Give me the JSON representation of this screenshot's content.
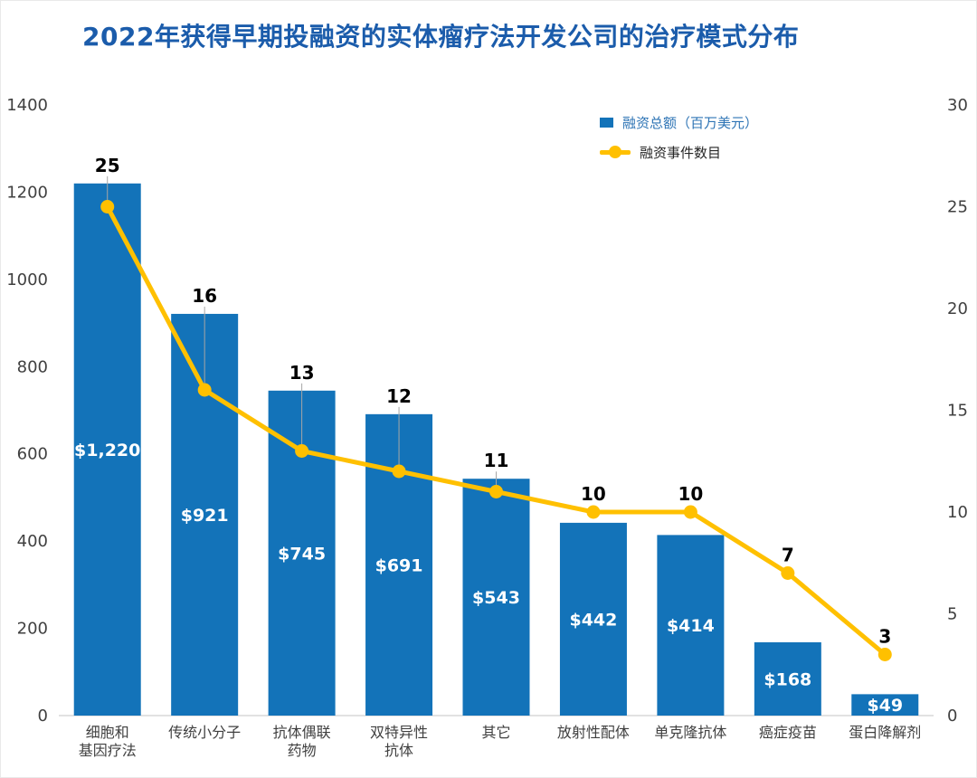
{
  "title": "2022年获得早期投融资的实体瘤疗法开发公司的治疗模式分布",
  "legend": {
    "bar_label": "融资总额（百万美元）",
    "line_label": "融资事件数目"
  },
  "colors": {
    "bar": "#1373B9",
    "line": "#FFC000",
    "title": "#1B5CAB",
    "axis_text": "#404040",
    "axis_line": "#D9D9D9",
    "leader": "#A6A6A6",
    "bar_value_text": "#FFFFFF",
    "line_value_text": "#000000",
    "legend_bar_label_text": "#2E74B5",
    "legend_line_label_text": "#262626"
  },
  "chart_data": {
    "type": "bar+line combo",
    "title": "2022年获得早期投融资的实体瘤疗法开发公司的治疗模式分布",
    "grid": false,
    "legend_position": "inside-top-right",
    "categories": [
      "细胞和\n基因疗法",
      "传统小分子",
      "抗体偶联\n药物",
      "双特异性\n抗体",
      "其它",
      "放射性配体",
      "单克隆抗体",
      "癌症疫苗",
      "蛋白降解剂"
    ],
    "series": [
      {
        "name": "融资总额（百万美元）",
        "type": "bar",
        "axis": "left",
        "values": [
          1220,
          921,
          745,
          691,
          543,
          442,
          414,
          168,
          49
        ],
        "labels": [
          "$1,220",
          "$921",
          "$745",
          "$691",
          "$543",
          "$442",
          "$414",
          "$168",
          "$49"
        ]
      },
      {
        "name": "融资事件数目",
        "type": "line",
        "axis": "right",
        "values": [
          25,
          16,
          13,
          12,
          11,
          10,
          10,
          7,
          3
        ]
      }
    ],
    "left_axis": {
      "min": 0,
      "max": 1400,
      "step": 200,
      "ticks": [
        "0",
        "200",
        "400",
        "600",
        "800",
        "1000",
        "1200",
        "1400"
      ]
    },
    "right_axis": {
      "min": 0,
      "max": 30,
      "step": 5,
      "ticks": [
        "0",
        "5",
        "10",
        "15",
        "20",
        "25",
        "30"
      ]
    }
  }
}
